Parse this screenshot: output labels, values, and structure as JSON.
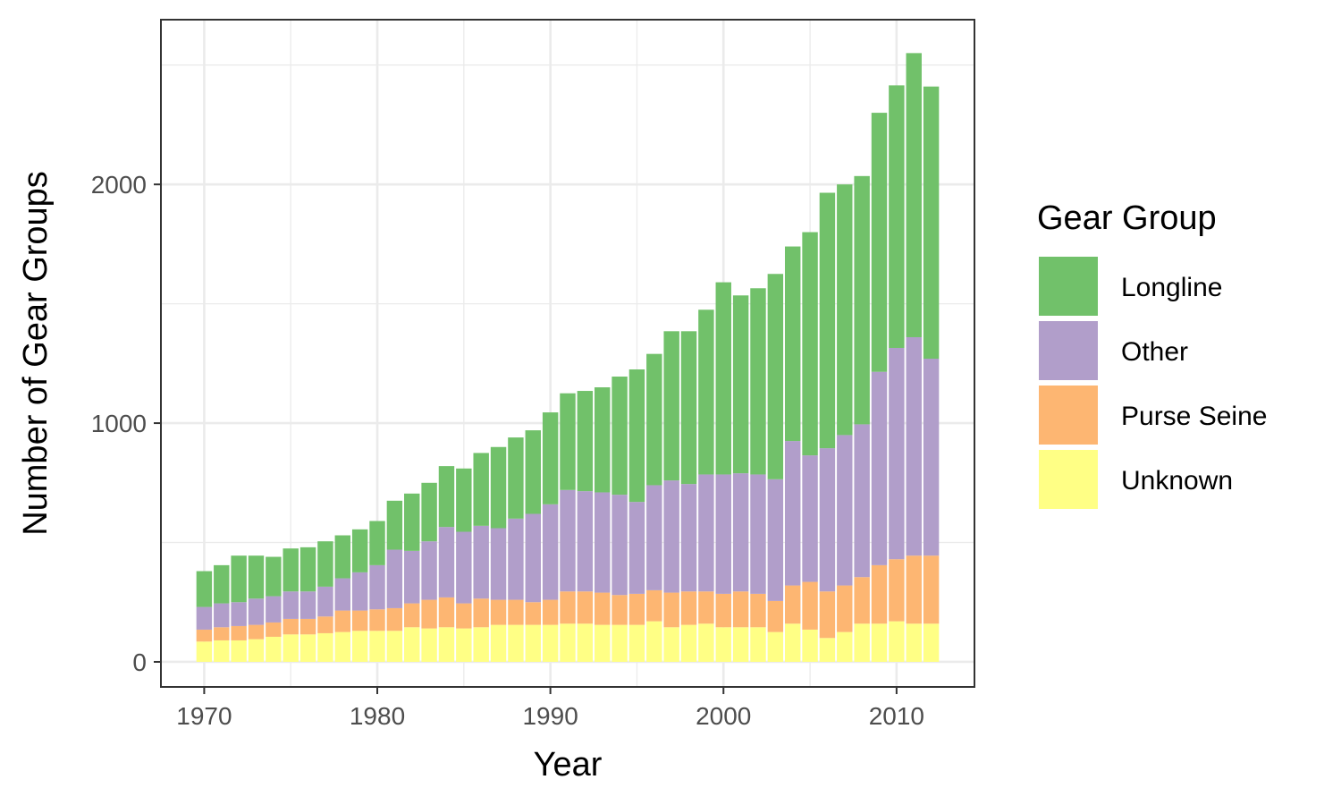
{
  "chart_data": {
    "type": "bar",
    "stacked": true,
    "xlabel": "Year",
    "ylabel": "Number of Gear Groups",
    "x": [
      1970,
      1971,
      1972,
      1973,
      1974,
      1975,
      1976,
      1977,
      1978,
      1979,
      1980,
      1981,
      1982,
      1983,
      1984,
      1985,
      1986,
      1987,
      1988,
      1989,
      1990,
      1991,
      1992,
      1993,
      1994,
      1995,
      1996,
      1997,
      1998,
      1999,
      2000,
      2001,
      2002,
      2003,
      2004,
      2005,
      2006,
      2007,
      2008,
      2009,
      2010,
      2011,
      2012
    ],
    "x_ticks": [
      "1970",
      "1980",
      "1990",
      "2000",
      "2010"
    ],
    "y_ticks": [
      "0",
      "1000",
      "2000"
    ],
    "xlim": [
      1967.5,
      2014.5
    ],
    "ylim": [
      -105,
      2690
    ],
    "grid": true,
    "legend_position": "right",
    "legend_title": "Gear Group",
    "series": [
      {
        "name": "Unknown",
        "color": "#FFFF85",
        "values": [
          85,
          90,
          90,
          95,
          105,
          115,
          115,
          120,
          125,
          130,
          130,
          130,
          145,
          140,
          145,
          140,
          145,
          155,
          155,
          155,
          155,
          160,
          160,
          155,
          155,
          155,
          170,
          145,
          155,
          160,
          145,
          145,
          145,
          125,
          160,
          135,
          100,
          125,
          160,
          160,
          170,
          160,
          160
        ]
      },
      {
        "name": "Purse Seine",
        "color": "#FDB672",
        "values": [
          50,
          55,
          60,
          60,
          60,
          65,
          65,
          70,
          90,
          85,
          90,
          95,
          100,
          120,
          125,
          105,
          120,
          105,
          105,
          95,
          105,
          135,
          135,
          135,
          125,
          130,
          130,
          145,
          140,
          135,
          140,
          150,
          140,
          130,
          160,
          200,
          195,
          195,
          195,
          245,
          260,
          285,
          285
        ]
      },
      {
        "name": "Other",
        "color": "#B19ECA",
        "values": [
          95,
          100,
          100,
          110,
          110,
          115,
          115,
          125,
          135,
          160,
          185,
          245,
          220,
          245,
          295,
          300,
          305,
          300,
          340,
          370,
          400,
          425,
          420,
          420,
          420,
          385,
          440,
          470,
          450,
          490,
          500,
          495,
          500,
          510,
          605,
          530,
          600,
          630,
          640,
          810,
          885,
          915,
          825
        ]
      },
      {
        "name": "Longline",
        "color": "#71C16A",
        "values": [
          150,
          160,
          195,
          180,
          165,
          180,
          185,
          190,
          180,
          180,
          185,
          205,
          240,
          245,
          255,
          265,
          305,
          340,
          340,
          350,
          385,
          405,
          420,
          440,
          495,
          555,
          550,
          625,
          640,
          690,
          805,
          745,
          780,
          860,
          815,
          935,
          1070,
          1050,
          1040,
          1085,
          1100,
          1190,
          1140
        ]
      }
    ]
  }
}
